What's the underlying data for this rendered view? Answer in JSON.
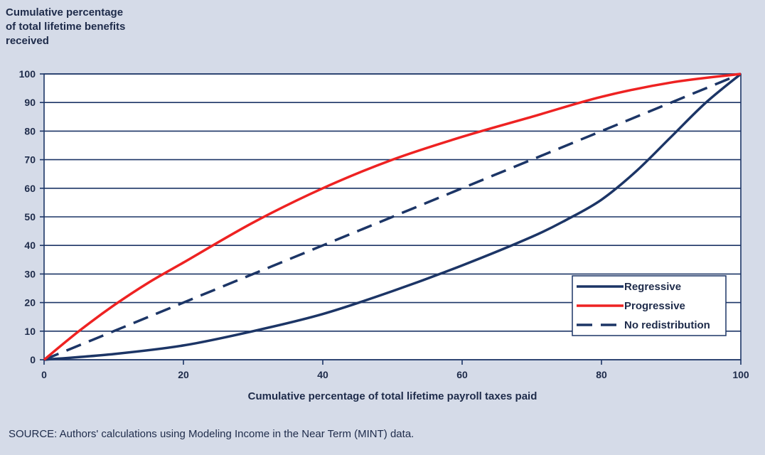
{
  "chart_data": {
    "type": "line",
    "ylabel": "Cumulative percentage\nof total lifetime benefits\nreceived",
    "xlabel": "Cumulative percentage of total lifetime payroll taxes paid",
    "xlim": [
      0,
      100
    ],
    "ylim": [
      0,
      100
    ],
    "xticks": [
      "0",
      "20",
      "40",
      "60",
      "80",
      "100"
    ],
    "yticks": [
      "0",
      "10",
      "20",
      "30",
      "40",
      "50",
      "60",
      "70",
      "80",
      "90",
      "100"
    ],
    "grid": "horizontal",
    "legend_position": "lower-right",
    "series": [
      {
        "name": "Regressive",
        "color": "#1c3566",
        "style": "solid",
        "x": [
          0,
          10,
          20,
          30,
          40,
          50,
          60,
          70,
          75,
          80,
          85,
          90,
          95,
          100
        ],
        "y": [
          0,
          2,
          5,
          10,
          16,
          24,
          33,
          43,
          49,
          56,
          66,
          78,
          90,
          100
        ]
      },
      {
        "name": "Progressive",
        "color": "#ee2222",
        "style": "solid",
        "x": [
          0,
          5,
          10,
          15,
          20,
          30,
          40,
          50,
          60,
          70,
          80,
          90,
          100
        ],
        "y": [
          0,
          10,
          19,
          27,
          34,
          48,
          60,
          70,
          78,
          85,
          92,
          97,
          100
        ]
      },
      {
        "name": "No redistribution",
        "color": "#1c3566",
        "style": "dashed",
        "x": [
          0,
          100
        ],
        "y": [
          0,
          100
        ]
      }
    ]
  },
  "source": "SOURCE: Authors' calculations using Modeling Income in the Near Term (MINT) data."
}
